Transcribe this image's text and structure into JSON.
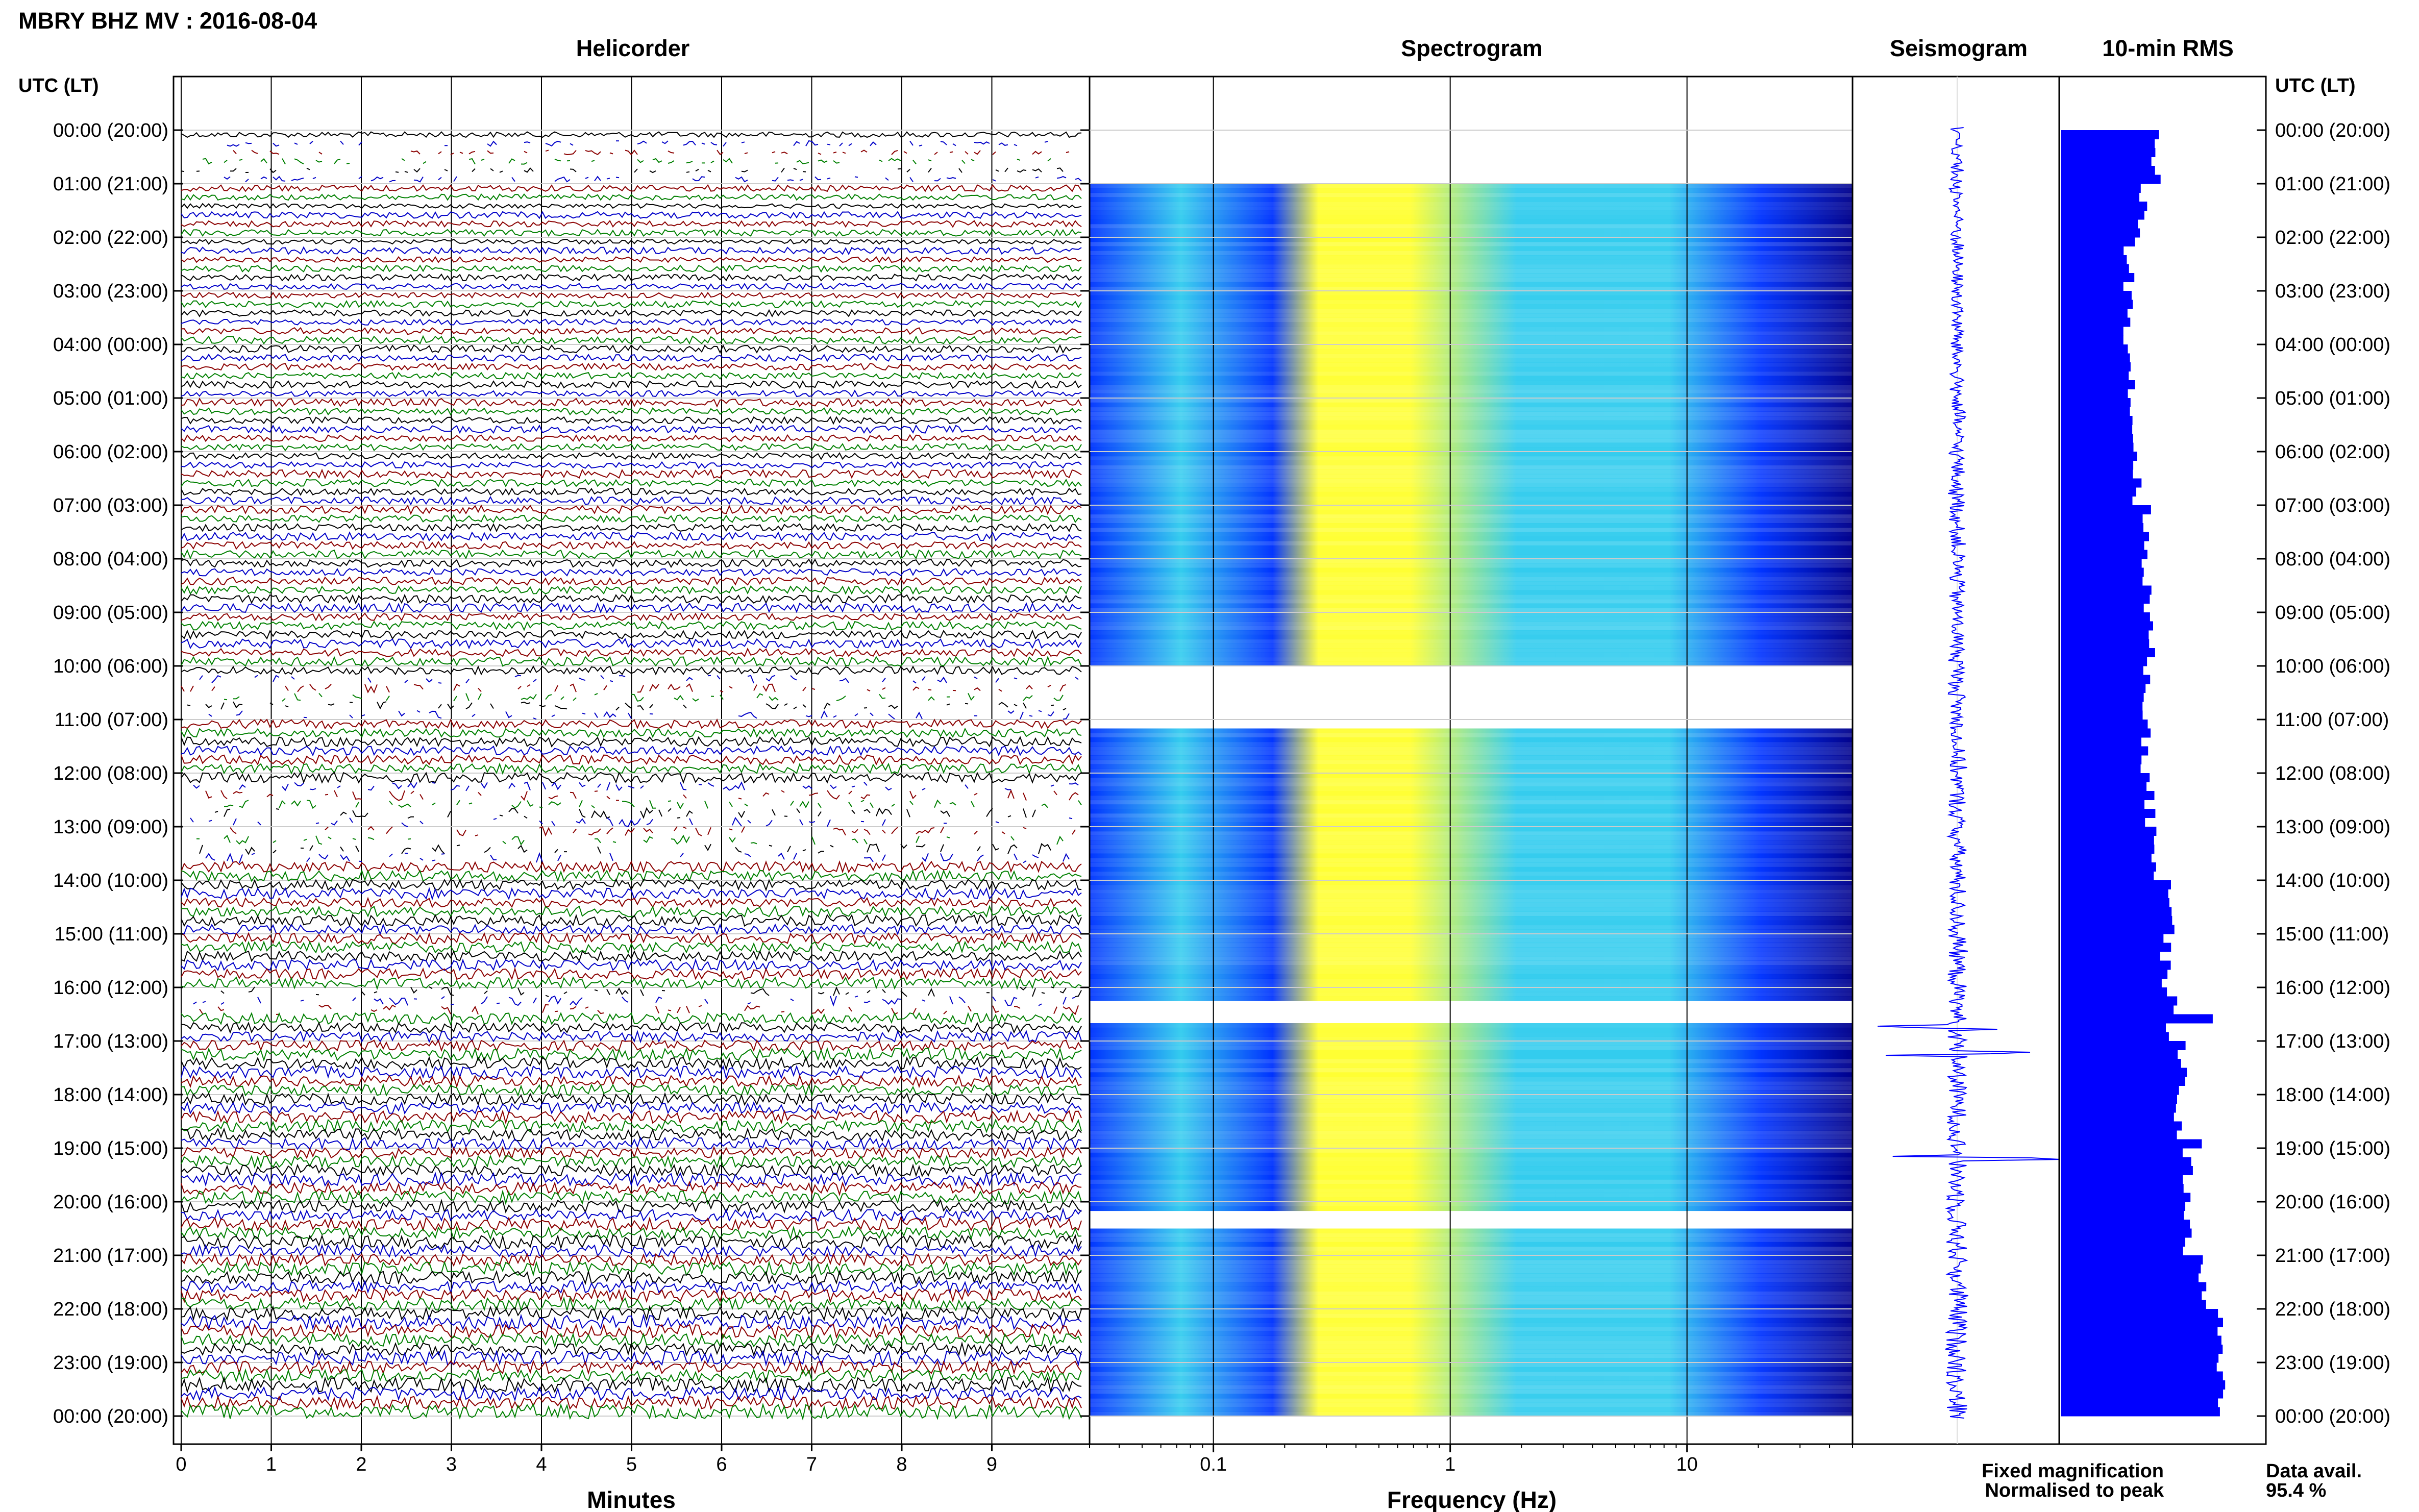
{
  "figure": {
    "title": "MBRY BHZ MV : 2016-08-04",
    "time_axis_label_left": "UTC (LT)",
    "time_axis_label_right": "UTC (LT)",
    "time_ticks": [
      "00:00 (20:00)",
      "01:00 (21:00)",
      "02:00 (22:00)",
      "03:00 (23:00)",
      "04:00 (00:00)",
      "05:00 (01:00)",
      "06:00 (02:00)",
      "07:00 (03:00)",
      "08:00 (04:00)",
      "09:00 (05:00)",
      "10:00 (06:00)",
      "11:00 (07:00)",
      "12:00 (08:00)",
      "13:00 (09:00)",
      "14:00 (10:00)",
      "15:00 (11:00)",
      "16:00 (12:00)",
      "17:00 (13:00)",
      "18:00 (14:00)",
      "19:00 (15:00)",
      "20:00 (16:00)",
      "21:00 (17:00)",
      "22:00 (18:00)",
      "23:00 (19:00)",
      "00:00 (20:00)"
    ],
    "legend": {
      "fixed": "Fixed magnification",
      "normalised": "Normalised to peak",
      "fixed_color": "#0000ff",
      "normalised_color": "#ff0000"
    },
    "availability_label": "Data avail.",
    "availability_value": "95.4 %"
  },
  "chart_data": [
    {
      "type": "line",
      "panel": "Helicorder",
      "title": "Helicorder",
      "xlabel": "Minutes",
      "x_ticks": [
        "0",
        "1",
        "2",
        "3",
        "4",
        "5",
        "6",
        "7",
        "8",
        "9"
      ],
      "xlim": [
        0,
        10
      ],
      "trace_colors": [
        "#000000",
        "#0000c8",
        "#8b0000",
        "#008000"
      ],
      "rows_per_hour": 6,
      "gap_segments_utc": [
        "00:00-01:00 partial",
        "10:00-11:00 partial",
        "12:00-13:30 partial",
        "16:00-16:30 partial"
      ]
    },
    {
      "type": "heatmap",
      "panel": "Spectrogram",
      "title": "Spectrogram",
      "xlabel": "Frequency (Hz)",
      "x_scale": "log",
      "x_ticks": [
        "0.1",
        "1",
        "10"
      ],
      "xlim": [
        0.03,
        50
      ],
      "colormap": [
        "#00008b",
        "#0033ff",
        "#33ccee",
        "#ffff33"
      ],
      "gaps_utc": [
        "00:00-01:00",
        "10:00-11:10",
        "16:15-16:40",
        "20:10-20:30"
      ]
    },
    {
      "type": "line",
      "panel": "Seismogram",
      "title": "Seismogram",
      "color": "#0000ff",
      "spikes_utc": [
        "16:45",
        "17:15",
        "19:10"
      ]
    },
    {
      "type": "bar",
      "panel": "10-min RMS",
      "title": "10-min RMS",
      "color": "#0000ff",
      "orientation": "horizontal",
      "hourly_rms_relative": [
        0.47,
        0.4,
        0.34,
        0.34,
        0.35,
        0.36,
        0.38,
        0.42,
        0.43,
        0.44,
        0.43,
        0.42,
        0.44,
        0.47,
        0.55,
        0.52,
        0.55,
        0.6,
        0.58,
        0.63,
        0.62,
        0.7,
        0.78,
        0.8
      ],
      "xlim": [
        0,
        1
      ]
    }
  ]
}
